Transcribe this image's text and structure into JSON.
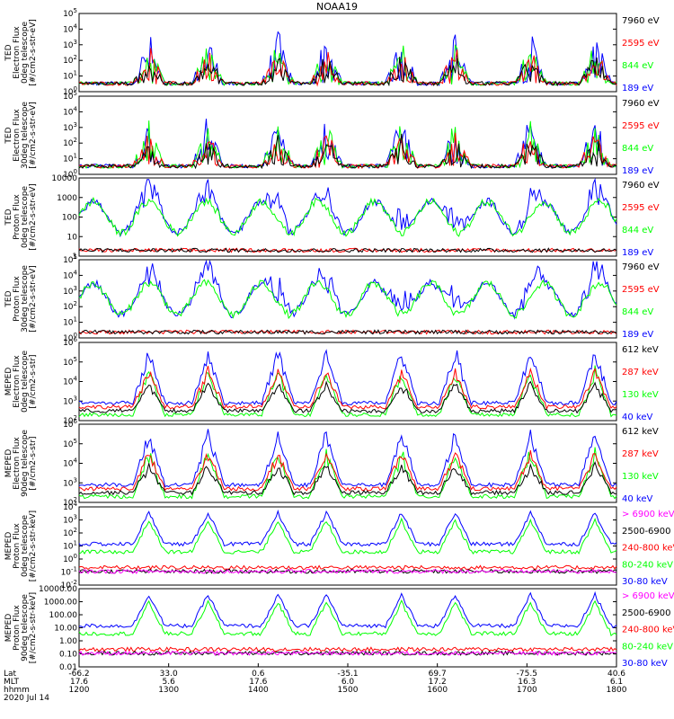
{
  "title": "NOAA19",
  "colors": {
    "black": "#000000",
    "red": "#ff0000",
    "green": "#00ff00",
    "blue": "#0000ff",
    "magenta": "#ff00ff"
  },
  "chart_data": [
    {
      "type": "line",
      "ylabel": [
        "TED",
        "Electron Flux",
        "0deg telescope",
        "[#/cm2-s-str-eV]"
      ],
      "yscale": "log",
      "yticks": [
        "10^0",
        "10^1",
        "10^2",
        "10^3",
        "10^4",
        "10^5"
      ],
      "legend": [
        {
          "label": "7960 eV",
          "color": "black"
        },
        {
          "label": "2595 eV",
          "color": "red"
        },
        {
          "label": "844 eV",
          "color": "green"
        },
        {
          "label": "189 eV",
          "color": "blue"
        }
      ]
    },
    {
      "type": "line",
      "ylabel": [
        "TED",
        "Electron Flux",
        "30deg telescope",
        "[#/cm2-s-str-eV]"
      ],
      "yscale": "log",
      "yticks": [
        "10^0",
        "10^1",
        "10^2",
        "10^3",
        "10^4",
        "10^5"
      ],
      "legend": [
        {
          "label": "7960 eV",
          "color": "black"
        },
        {
          "label": "2595 eV",
          "color": "red"
        },
        {
          "label": "844 eV",
          "color": "green"
        },
        {
          "label": "189 eV",
          "color": "blue"
        }
      ]
    },
    {
      "type": "line",
      "ylabel": [
        "TED",
        "Proton Flux",
        "0deg telescope",
        "[#/cm2-s-str-eV]"
      ],
      "yscale": "log",
      "yticks": [
        "1",
        "10",
        "100",
        "1000",
        "10000"
      ],
      "legend": [
        {
          "label": "7960 eV",
          "color": "black"
        },
        {
          "label": "2595 eV",
          "color": "red"
        },
        {
          "label": "844 eV",
          "color": "green"
        },
        {
          "label": "189 eV",
          "color": "blue"
        }
      ]
    },
    {
      "type": "line",
      "ylabel": [
        "TED",
        "Proton Flux",
        "30deg telescope",
        "[#/cm2-s-str-eV]"
      ],
      "yscale": "log",
      "yticks": [
        "10^0",
        "10^1",
        "10^2",
        "10^3",
        "10^4",
        "10^5"
      ],
      "legend": [
        {
          "label": "7960 eV",
          "color": "black"
        },
        {
          "label": "2595 eV",
          "color": "red"
        },
        {
          "label": "844 eV",
          "color": "green"
        },
        {
          "label": "189 eV",
          "color": "blue"
        }
      ]
    },
    {
      "type": "line",
      "ylabel": [
        "MEPED",
        "Electron Flux",
        "0deg telescope",
        "[#/cm2-s-str]"
      ],
      "yscale": "log",
      "yticks": [
        "10^2",
        "10^3",
        "10^4",
        "10^5",
        "10^6"
      ],
      "legend": [
        {
          "label": "612 keV",
          "color": "black"
        },
        {
          "label": "287 keV",
          "color": "red"
        },
        {
          "label": "130 keV",
          "color": "green"
        },
        {
          "label": "40 keV",
          "color": "blue"
        }
      ]
    },
    {
      "type": "line",
      "ylabel": [
        "MEPED",
        "Electron Flux",
        "90deg telescope",
        "[#/cm2-s-str]"
      ],
      "yscale": "log",
      "yticks": [
        "10^2",
        "10^3",
        "10^4",
        "10^5",
        "10^6"
      ],
      "legend": [
        {
          "label": "612 keV",
          "color": "black"
        },
        {
          "label": "287 keV",
          "color": "red"
        },
        {
          "label": "130 keV",
          "color": "green"
        },
        {
          "label": "40 keV",
          "color": "blue"
        }
      ]
    },
    {
      "type": "line",
      "ylabel": [
        "MEPED",
        "Proton Flux",
        "0deg telescope",
        "[#/cm2-s-str-keV]"
      ],
      "yscale": "log",
      "yticks": [
        "10^-2",
        "10^-1",
        "10^0",
        "10^1",
        "10^2",
        "10^3",
        "10^4"
      ],
      "legend": [
        {
          "label": "> 6900 keV",
          "color": "magenta"
        },
        {
          "label": "2500-6900",
          "color": "black"
        },
        {
          "label": "240-800 keV",
          "color": "red"
        },
        {
          "label": "80-240 keV",
          "color": "green"
        },
        {
          "label": "30-80 keV",
          "color": "blue"
        }
      ]
    },
    {
      "type": "line",
      "ylabel": [
        "MEPED",
        "Proton Flux",
        "90deg telescope",
        "[#/cm2-s-str-keV]"
      ],
      "yscale": "log",
      "yticks": [
        "0.01",
        "0.10",
        "1.00",
        "10.00",
        "100.00",
        "1000.00",
        "10000.00"
      ],
      "legend": [
        {
          "label": "> 6900 keV",
          "color": "magenta"
        },
        {
          "label": "2500-6900",
          "color": "black"
        },
        {
          "label": "240-800 keV",
          "color": "red"
        },
        {
          "label": "80-240 keV",
          "color": "green"
        },
        {
          "label": "30-80 keV",
          "color": "blue"
        }
      ]
    }
  ],
  "xaxis": {
    "rows": [
      {
        "name": "Lat",
        "values": [
          "-66.2",
          "33.0",
          "0.6",
          "-35.1",
          "69.7",
          "-75.5",
          "40.6"
        ]
      },
      {
        "name": "MLT",
        "values": [
          "17.6",
          "5.6",
          "17.6",
          "6.0",
          "17.2",
          "16.3",
          "6.1"
        ]
      },
      {
        "name": "hhmm",
        "values": [
          "1200",
          "1300",
          "1400",
          "1500",
          "1600",
          "1700",
          "1800"
        ]
      }
    ],
    "date": "2020 Jul 14"
  }
}
